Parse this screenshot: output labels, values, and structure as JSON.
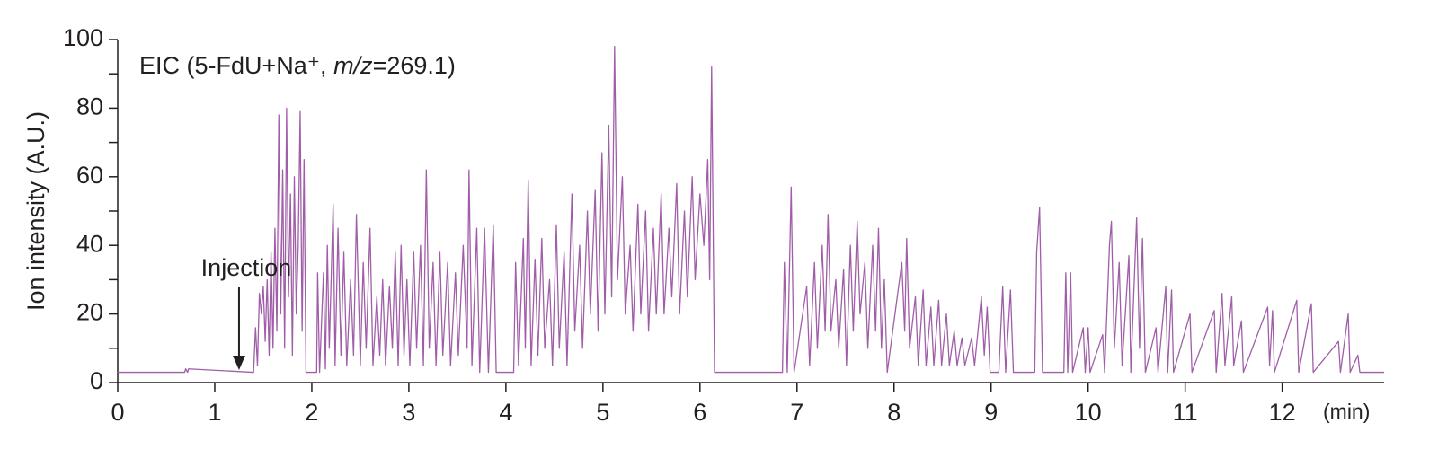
{
  "chart_data": {
    "type": "line",
    "annotation_parts": [
      "EIC (5-FdU+Na⁺, ",
      "m/z",
      "=269.1)"
    ],
    "injection_label": "Injection",
    "injection_x": 1.25,
    "ylabel": "Ion intensity (A.U.)",
    "xlabel": "(min)",
    "color": "#a05ea8",
    "xlim": [
      0,
      13.05
    ],
    "ylim": [
      0,
      100
    ],
    "xticks": [
      0,
      1,
      2,
      3,
      4,
      5,
      6,
      7,
      8,
      9,
      10,
      11,
      12
    ],
    "yticks": [
      0,
      20,
      40,
      60,
      80,
      100
    ],
    "yminor": [
      10,
      30,
      50,
      70,
      90
    ],
    "x": [
      0,
      0.69,
      0.7,
      0.72,
      0.73,
      1.39,
      1.4,
      1.42,
      1.44,
      1.46,
      1.48,
      1.5,
      1.52,
      1.54,
      1.56,
      1.58,
      1.6,
      1.62,
      1.64,
      1.66,
      1.68,
      1.7,
      1.72,
      1.74,
      1.76,
      1.78,
      1.8,
      1.82,
      1.84,
      1.86,
      1.88,
      1.9,
      1.92,
      1.94,
      2.05,
      2.06,
      2.08,
      2.12,
      2.14,
      2.16,
      2.18,
      2.22,
      2.24,
      2.27,
      2.3,
      2.33,
      2.36,
      2.4,
      2.43,
      2.46,
      2.5,
      2.53,
      2.56,
      2.6,
      2.63,
      2.67,
      2.7,
      2.73,
      2.76,
      2.8,
      2.83,
      2.86,
      2.89,
      2.92,
      2.95,
      2.98,
      3.01,
      3.05,
      3.08,
      3.12,
      3.15,
      3.18,
      3.21,
      3.25,
      3.28,
      3.32,
      3.35,
      3.4,
      3.43,
      3.48,
      3.51,
      3.56,
      3.6,
      3.62,
      3.65,
      3.7,
      3.73,
      3.78,
      3.82,
      3.87,
      3.9,
      4.08,
      4.1,
      4.13,
      4.18,
      4.2,
      4.23,
      4.26,
      4.3,
      4.33,
      4.37,
      4.4,
      4.45,
      4.48,
      4.52,
      4.55,
      4.6,
      4.63,
      4.68,
      4.71,
      4.76,
      4.79,
      4.84,
      4.87,
      4.92,
      4.95,
      4.99,
      5.02,
      5.06,
      5.09,
      5.12,
      5.15,
      5.2,
      5.23,
      5.28,
      5.31,
      5.36,
      5.39,
      5.44,
      5.47,
      5.52,
      5.55,
      5.6,
      5.63,
      5.68,
      5.71,
      5.76,
      5.79,
      5.84,
      5.87,
      5.92,
      5.95,
      6.0,
      6.04,
      6.08,
      6.1,
      6.12,
      6.15,
      6.85,
      6.87,
      6.9,
      6.94,
      6.97,
      7.1,
      7.13,
      7.18,
      7.21,
      7.26,
      7.29,
      7.32,
      7.35,
      7.4,
      7.43,
      7.48,
      7.51,
      7.55,
      7.58,
      7.62,
      7.65,
      7.7,
      7.73,
      7.78,
      7.81,
      7.84,
      7.87,
      7.9,
      7.93,
      8.08,
      8.11,
      8.13,
      8.16,
      8.22,
      8.25,
      8.3,
      8.33,
      8.38,
      8.41,
      8.46,
      8.49,
      8.54,
      8.57,
      8.62,
      8.65,
      8.7,
      8.73,
      8.8,
      8.83,
      8.9,
      8.93,
      8.96,
      8.99,
      9.08,
      9.12,
      9.15,
      9.2,
      9.23,
      9.45,
      9.47,
      9.5,
      9.53,
      9.75,
      9.77,
      9.79,
      9.82,
      9.84,
      9.95,
      9.97,
      10.0,
      10.02,
      10.15,
      10.17,
      10.22,
      10.24,
      10.27,
      10.32,
      10.35,
      10.42,
      10.44,
      10.5,
      10.53,
      10.56,
      10.59,
      10.7,
      10.72,
      10.8,
      10.82,
      10.86,
      10.88,
      11.05,
      11.07,
      11.3,
      11.32,
      11.38,
      11.41,
      11.48,
      11.5,
      11.58,
      11.6,
      11.85,
      11.87,
      11.9,
      11.92,
      12.15,
      12.17,
      12.3,
      12.32,
      12.58,
      12.6,
      12.68,
      12.7,
      12.78,
      12.8,
      13.05
    ],
    "values": [
      3,
      3,
      4,
      3,
      4,
      3,
      3,
      16,
      5,
      26,
      20,
      28,
      12,
      30,
      8,
      38,
      10,
      45,
      15,
      78,
      20,
      62,
      10,
      80,
      25,
      55,
      8,
      60,
      20,
      40,
      79,
      15,
      65,
      3,
      3,
      32,
      3,
      32,
      4,
      40,
      10,
      52,
      5,
      45,
      8,
      38,
      5,
      30,
      8,
      49,
      5,
      35,
      10,
      45,
      5,
      25,
      8,
      30,
      5,
      28,
      10,
      38,
      5,
      40,
      8,
      30,
      5,
      38,
      10,
      40,
      5,
      62,
      10,
      35,
      5,
      38,
      8,
      35,
      5,
      32,
      8,
      40,
      10,
      62,
      5,
      45,
      3,
      45,
      3,
      46,
      3,
      3,
      35,
      5,
      42,
      10,
      59,
      5,
      36,
      8,
      42,
      10,
      30,
      5,
      46,
      10,
      38,
      5,
      55,
      15,
      40,
      10,
      50,
      20,
      56,
      15,
      67,
      20,
      75,
      25,
      98,
      30,
      60,
      20,
      40,
      15,
      52,
      20,
      50,
      15,
      45,
      20,
      55,
      20,
      45,
      25,
      58,
      20,
      50,
      25,
      60,
      30,
      55,
      40,
      65,
      30,
      92,
      3,
      3,
      35,
      3,
      57,
      3,
      28,
      5,
      35,
      10,
      40,
      15,
      49,
      15,
      30,
      10,
      33,
      5,
      40,
      15,
      47,
      20,
      35,
      10,
      40,
      15,
      45,
      10,
      30,
      3,
      35,
      15,
      42,
      10,
      25,
      5,
      27,
      5,
      22,
      5,
      24,
      5,
      20,
      5,
      15,
      5,
      13,
      5,
      13,
      5,
      25,
      8,
      22,
      3,
      3,
      28,
      3,
      27,
      3,
      3,
      38,
      51,
      3,
      3,
      32,
      3,
      32,
      3,
      16,
      3,
      16,
      3,
      14,
      3,
      40,
      47,
      10,
      35,
      5,
      37,
      3,
      48,
      10,
      42,
      3,
      16,
      3,
      28,
      3,
      27,
      3,
      20,
      3,
      21,
      3,
      26,
      5,
      25,
      5,
      18,
      3,
      22,
      5,
      21,
      3,
      24,
      3,
      23,
      3,
      12,
      3,
      20,
      3,
      8,
      3,
      3
    ]
  }
}
